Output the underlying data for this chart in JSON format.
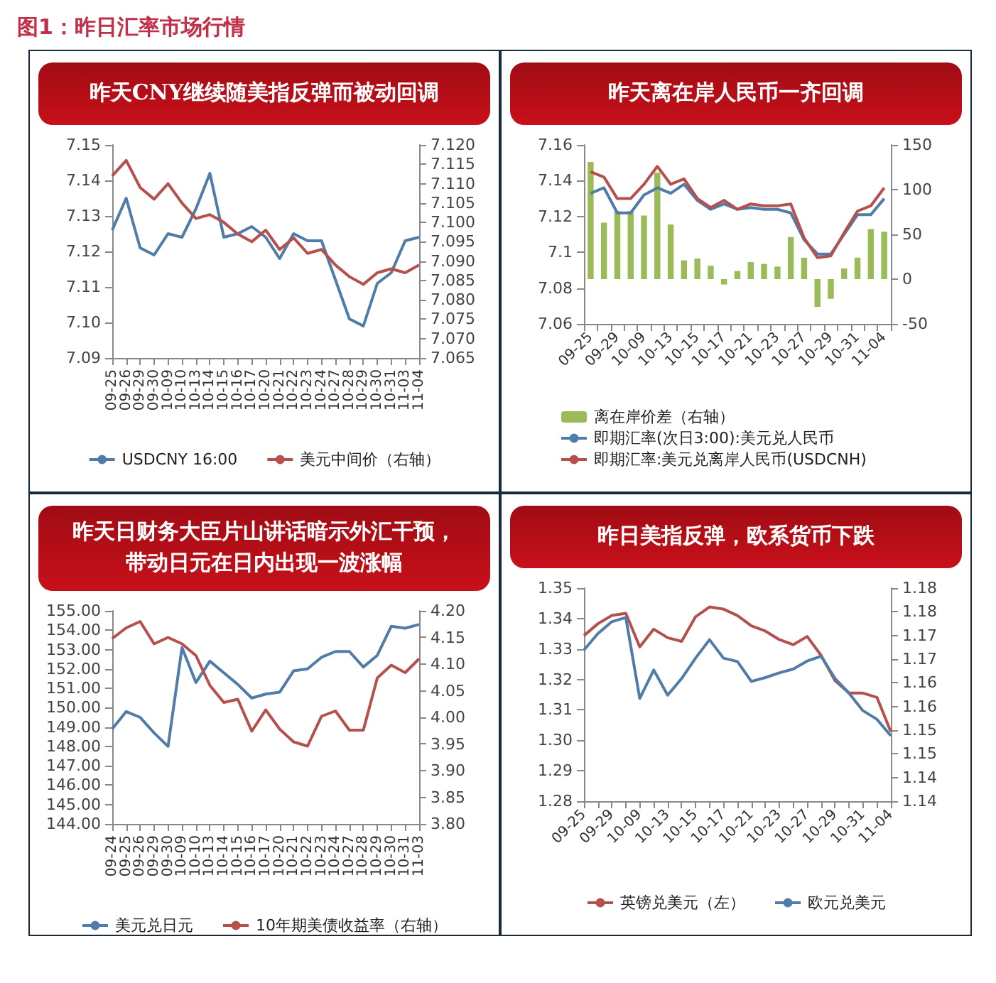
{
  "chart_data": [
    {
      "type": "other",
      "title": "图1：昨日汇率市场行情"
    },
    {
      "type": "line",
      "title": "昨天CNY继续随美指反弹而被动回调",
      "categories": [
        "09-25",
        "09-26",
        "09-29",
        "09-30",
        "10-09",
        "10-10",
        "10-13",
        "10-14",
        "10-15",
        "10-16",
        "10-17",
        "10-20",
        "10-21",
        "10-22",
        "10-23",
        "10-24",
        "10-27",
        "10-28",
        "10-29",
        "10-30",
        "10-31",
        "11-03",
        "11-04"
      ],
      "series": [
        {
          "name": "USDCNY 16:00",
          "color": "#4f7ca8",
          "values": [
            7.126,
            7.135,
            7.121,
            7.119,
            7.125,
            7.124,
            7.132,
            7.142,
            7.124,
            7.125,
            7.127,
            7.124,
            7.118,
            7.125,
            7.123,
            7.123,
            7.112,
            7.101,
            7.099,
            7.111,
            7.114,
            7.123,
            7.124
          ]
        },
        {
          "name": "美元中间价（右轴）",
          "color": "#b5504d",
          "axis": "y2",
          "values": [
            7.112,
            7.116,
            7.109,
            7.106,
            7.11,
            7.105,
            7.101,
            7.102,
            7.1,
            7.097,
            7.095,
            7.098,
            7.093,
            7.096,
            7.092,
            7.093,
            7.089,
            7.086,
            7.084,
            7.087,
            7.088,
            7.087,
            7.089
          ]
        }
      ],
      "ylim": [
        7.09,
        7.15
      ],
      "yticks": [
        7.09,
        {
          "value": 7.1,
          "label": "7.10"
        },
        7.11,
        7.12,
        7.13,
        7.14,
        7.15
      ],
      "y2lim": [
        7.065,
        7.12
      ],
      "y2ticks": [
        7.065,
        {
          "value": 7.07,
          "label": "7.070"
        },
        7.075,
        {
          "value": 7.08,
          "label": "7.080"
        },
        7.085,
        {
          "value": 7.09,
          "label": "7.090"
        },
        7.095,
        {
          "value": 7.1,
          "label": "7.100"
        },
        7.105,
        {
          "value": 7.11,
          "label": "7.110"
        },
        7.115,
        {
          "value": 7.12,
          "label": "7.120"
        }
      ],
      "grid": false,
      "legend": "bottom",
      "marker": "none",
      "line_style": "solid"
    },
    {
      "type": "line",
      "title": "昨天离在岸人民币一齐回调",
      "categories": [
        "09-25",
        null,
        "09-29",
        null,
        "10-09",
        null,
        "10-13",
        null,
        "10-15",
        null,
        "10-17",
        null,
        "10-21",
        null,
        "10-23",
        null,
        "10-27",
        null,
        "10-29",
        null,
        "10-31",
        null,
        "11-04"
      ],
      "series": [
        {
          "name": "离在岸价差（右轴）",
          "type": "bar",
          "color": "#9bbb59",
          "axis": "y2",
          "values": [
            131,
            63,
            76,
            76,
            71,
            119,
            61,
            21,
            23,
            15,
            -6,
            9,
            19,
            17,
            14,
            47,
            24,
            -31,
            -22,
            12,
            24,
            56,
            53
          ]
        },
        {
          "name": "即期汇率(次日3:00):美元兑人民币",
          "color": "#4f7ca8",
          "values": [
            7.133,
            7.136,
            7.122,
            7.122,
            7.132,
            7.136,
            7.133,
            7.138,
            7.129,
            7.124,
            7.127,
            7.124,
            7.125,
            7.124,
            7.124,
            7.122,
            7.107,
            7.099,
            7.099,
            7.11,
            7.121,
            7.121,
            7.13
          ]
        },
        {
          "name": "即期汇率:美元兑离岸人民币(USDCNH)",
          "color": "#b5504d",
          "values": [
            7.145,
            7.142,
            7.13,
            7.13,
            7.138,
            7.148,
            7.138,
            7.141,
            7.13,
            7.125,
            7.129,
            7.124,
            7.127,
            7.126,
            7.126,
            7.127,
            7.108,
            7.097,
            7.098,
            7.111,
            7.123,
            7.126,
            7.136
          ]
        }
      ],
      "ylim": [
        7.06,
        7.16
      ],
      "yticks": [
        7.06,
        7.08,
        7.1,
        7.12,
        7.14,
        7.16
      ],
      "y2lim": [
        -50,
        150
      ],
      "y2ticks": [
        -50,
        0,
        50,
        100,
        150
      ],
      "grid": false,
      "legend": "bottom",
      "marker": "none",
      "line_style": "solid"
    },
    {
      "type": "line",
      "title": "昨天日财务大臣片山讲话暗示外汇干预，带动日元在日内出现一波涨幅",
      "categories": [
        "09-24",
        "09-25",
        "09-26",
        "09-29",
        "09-30",
        "10-09",
        "10-10",
        "10-13",
        "10-14",
        "10-15",
        "10-16",
        "10-17",
        "10-20",
        "10-21",
        "10-22",
        "10-23",
        "10-24",
        "10-27",
        "10-28",
        "10-29",
        "10-30",
        "10-31",
        "11-03"
      ],
      "series": [
        {
          "name": "美元兑日元",
          "color": "#4f7ca8",
          "values": [
            148.9,
            149.8,
            149.5,
            148.7,
            148.0,
            153.1,
            151.3,
            152.4,
            151.8,
            151.2,
            150.5,
            150.7,
            150.8,
            151.9,
            152.0,
            152.6,
            152.9,
            152.9,
            152.1,
            152.7,
            154.2,
            154.1,
            154.3
          ]
        },
        {
          "name": "10年期美债收益率（右轴）",
          "color": "#b5504d",
          "axis": "y2",
          "values": [
            4.148,
            4.168,
            4.18,
            4.138,
            4.15,
            4.138,
            4.116,
            4.06,
            4.028,
            4.034,
            3.974,
            4.014,
            3.978,
            3.954,
            3.946,
            4.002,
            4.012,
            3.976,
            3.976,
            4.074,
            4.098,
            4.084,
            4.11
          ]
        }
      ],
      "ylim": [
        144,
        155
      ],
      "yticks": [
        {
          "value": 144,
          "label": "144.00"
        },
        {
          "value": 145,
          "label": "145.00"
        },
        {
          "value": 146,
          "label": "146.00"
        },
        {
          "value": 147,
          "label": "147.00"
        },
        {
          "value": 148,
          "label": "148.00"
        },
        {
          "value": 149,
          "label": "149.00"
        },
        {
          "value": 150,
          "label": "150.00"
        },
        {
          "value": 151,
          "label": "151.00"
        },
        {
          "value": 152,
          "label": "152.00"
        },
        {
          "value": 153,
          "label": "153.00"
        },
        {
          "value": 154,
          "label": "154.00"
        },
        {
          "value": 155,
          "label": "155.00"
        }
      ],
      "y2lim": [
        3.8,
        4.2
      ],
      "y2ticks": [
        {
          "value": 3.8,
          "label": "3.80"
        },
        3.85,
        {
          "value": 3.9,
          "label": "3.90"
        },
        3.95,
        {
          "value": 4,
          "label": "4.00"
        },
        4.05,
        {
          "value": 4.1,
          "label": "4.10"
        },
        4.15,
        {
          "value": 4.2,
          "label": "4.20"
        }
      ],
      "grid": false,
      "legend": "bottom",
      "marker": "none",
      "line_style": "solid"
    },
    {
      "type": "line",
      "title": "昨日美指反弹，欧系货币下跌",
      "categories": [
        "09-25",
        null,
        "09-29",
        null,
        "10-09",
        null,
        "10-13",
        null,
        "10-15",
        null,
        "10-17",
        null,
        "10-21",
        null,
        "10-23",
        null,
        "10-27",
        null,
        "10-29",
        null,
        "10-31",
        null,
        "11-04"
      ],
      "series": [
        {
          "name": "英镑兑美元（左）",
          "color": "#b5504d",
          "values": [
            1.3344,
            1.3383,
            1.341,
            1.3417,
            1.3307,
            1.3365,
            1.3337,
            1.3325,
            1.3406,
            1.3438,
            1.3431,
            1.341,
            1.3376,
            1.3359,
            1.3331,
            1.3314,
            1.3341,
            1.3279,
            1.3196,
            1.3155,
            1.3155,
            1.3141,
            1.3028
          ]
        },
        {
          "name": "欧元兑美元",
          "color": "#4f7ca8",
          "axis": "y2",
          "values": [
            1.1719,
            1.1754,
            1.1779,
            1.1788,
            1.1617,
            1.1677,
            1.1624,
            1.1659,
            1.1702,
            1.1741,
            1.1702,
            1.1695,
            1.1653,
            1.1661,
            1.1671,
            1.1679,
            1.1696,
            1.1706,
            1.1659,
            1.1628,
            1.1591,
            1.1573,
            1.1538
          ]
        }
      ],
      "ylim": [
        1.28,
        1.35
      ],
      "yticks": [
        1.28,
        1.29,
        {
          "value": 1.3,
          "label": "1.30"
        },
        1.31,
        1.32,
        1.33,
        1.34,
        1.35
      ],
      "y2lim": [
        1.14,
        1.185
      ],
      "y2ticks": [
        {
          "value": 1.14,
          "label": "1.14"
        },
        {
          "value": 1.145,
          "label": "1.14"
        },
        {
          "value": 1.15,
          "label": "1.15"
        },
        {
          "value": 1.155,
          "label": "1.15"
        },
        {
          "value": 1.16,
          "label": "1.16"
        },
        {
          "value": 1.165,
          "label": "1.16"
        },
        {
          "value": 1.17,
          "label": "1.17"
        },
        {
          "value": 1.175,
          "label": "1.17"
        },
        {
          "value": 1.18,
          "label": "1.18"
        },
        {
          "value": 1.185,
          "label": "1.18"
        }
      ],
      "grid": false,
      "legend": "bottom",
      "marker": "none",
      "line_style": "solid"
    }
  ]
}
